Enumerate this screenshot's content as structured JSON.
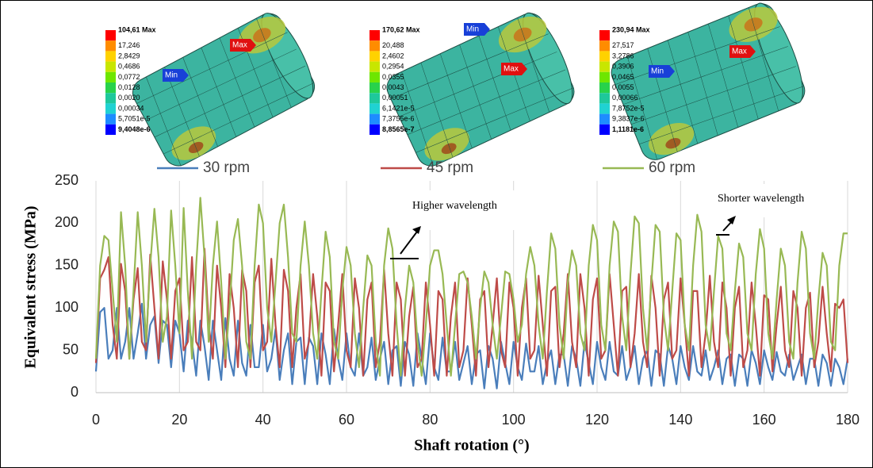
{
  "chart_data": {
    "type": "line",
    "x_label": "Shaft rotation (°)",
    "y_label": "Equivalent stress (MPa)",
    "xlim": [
      0,
      180
    ],
    "ylim": [
      0,
      250
    ],
    "xticks": [
      0,
      20,
      40,
      60,
      80,
      100,
      120,
      140,
      160,
      180
    ],
    "yticks": [
      0,
      50,
      100,
      150,
      200,
      250
    ],
    "grid": true,
    "legend": "top",
    "annotations": [
      "Higher wavelength",
      "Shorter wavelength"
    ],
    "insets": [
      {
        "labels": [
          "104,61 Max",
          "17,246",
          "2,8429",
          "0,4686",
          "0,0772",
          "0,0128",
          "0,0020",
          "0,00034",
          "5,7051e-5",
          "9,4048e-6"
        ],
        "markers": [
          "Max",
          "Min"
        ]
      },
      {
        "labels": [
          "170,62 Max",
          "20,488",
          "2,4602",
          "0,2954",
          "0,0355",
          "0,0043",
          "0,00051",
          "6,1421e-5",
          "7,3755e-6",
          "8,8565e-7"
        ],
        "markers": [
          "Min",
          "Max"
        ]
      },
      {
        "labels": [
          "230,94 Max",
          "27,517",
          "3,2786",
          "0,3906",
          "0,0465",
          "0,0055",
          "0,00066",
          "7,8752e-5",
          "9,3837e-6",
          "1,1181e-6"
        ],
        "markers": [
          "Max",
          "Min"
        ]
      }
    ],
    "x": [
      0,
      1,
      2,
      3,
      4,
      5,
      6,
      7,
      8,
      9,
      10,
      11,
      12,
      13,
      14,
      15,
      16,
      17,
      18,
      19,
      20,
      21,
      22,
      23,
      24,
      25,
      26,
      27,
      28,
      29,
      30,
      31,
      32,
      33,
      34,
      35,
      36,
      37,
      38,
      39,
      40,
      41,
      42,
      43,
      44,
      45,
      46,
      47,
      48,
      49,
      50,
      51,
      52,
      53,
      54,
      55,
      56,
      57,
      58,
      59,
      60,
      61,
      62,
      63,
      64,
      65,
      66,
      67,
      68,
      69,
      70,
      71,
      72,
      73,
      74,
      75,
      76,
      77,
      78,
      79,
      80,
      81,
      82,
      83,
      84,
      85,
      86,
      87,
      88,
      89,
      90,
      91,
      92,
      93,
      94,
      95,
      96,
      97,
      98,
      99,
      100,
      101,
      102,
      103,
      104,
      105,
      106,
      107,
      108,
      109,
      110,
      111,
      112,
      113,
      114,
      115,
      116,
      117,
      118,
      119,
      120,
      121,
      122,
      123,
      124,
      125,
      126,
      127,
      128,
      129,
      130,
      131,
      132,
      133,
      134,
      135,
      136,
      137,
      138,
      139,
      140,
      141,
      142,
      143,
      144,
      145,
      146,
      147,
      148,
      149,
      150,
      151,
      152,
      153,
      154,
      155,
      156,
      157,
      158,
      159,
      160,
      161,
      162,
      163,
      164,
      165,
      166,
      167,
      168,
      169,
      170,
      171,
      172,
      173,
      174,
      175,
      176,
      177,
      178,
      179,
      180
    ],
    "series": [
      {
        "name": "30 rpm",
        "color": "#4a7ebb",
        "values": [
          25,
          95,
          100,
          40,
          50,
          100,
          40,
          60,
          100,
          40,
          70,
          105,
          40,
          80,
          90,
          35,
          85,
          80,
          30,
          85,
          70,
          25,
          85,
          60,
          20,
          85,
          55,
          15,
          85,
          50,
          15,
          88,
          40,
          20,
          85,
          35,
          20,
          80,
          30,
          30,
          80,
          25,
          40,
          75,
          15,
          50,
          70,
          10,
          60,
          65,
          10,
          65,
          55,
          10,
          70,
          45,
          10,
          75,
          40,
          15,
          70,
          30,
          20,
          70,
          20,
          30,
          65,
          15,
          40,
          60,
          10,
          50,
          55,
          8,
          60,
          45,
          8,
          70,
          40,
          10,
          70,
          30,
          15,
          65,
          25,
          25,
          60,
          15,
          35,
          55,
          10,
          45,
          50,
          5,
          55,
          40,
          5,
          60,
          35,
          10,
          60,
          30,
          15,
          58,
          25,
          25,
          55,
          10,
          35,
          50,
          10,
          45,
          45,
          8,
          55,
          40,
          8,
          60,
          35,
          10,
          60,
          30,
          15,
          60,
          25,
          20,
          55,
          15,
          30,
          55,
          10,
          40,
          50,
          8,
          50,
          45,
          8,
          55,
          40,
          10,
          55,
          30,
          15,
          55,
          25,
          20,
          50,
          15,
          30,
          50,
          10,
          40,
          45,
          8,
          45,
          40,
          8,
          50,
          35,
          10,
          50,
          30,
          15,
          48,
          25,
          20,
          45,
          15,
          30,
          45,
          10,
          40,
          40,
          8,
          45,
          35,
          8,
          40,
          30,
          10,
          40
        ]
      },
      {
        "name": "45 rpm",
        "color": "#be4b48",
        "values": [
          35,
          135,
          145,
          160,
          80,
          40,
          152,
          120,
          40,
          110,
          147,
          60,
          50,
          163,
          100,
          40,
          155,
          110,
          40,
          120,
          135,
          50,
          60,
          160,
          60,
          50,
          170,
          80,
          40,
          150,
          100,
          30,
          140,
          100,
          30,
          145,
          120,
          30,
          130,
          150,
          50,
          60,
          158,
          80,
          30,
          145,
          120,
          30,
          100,
          140,
          40,
          60,
          140,
          90,
          20,
          130,
          120,
          25,
          80,
          140,
          50,
          30,
          135,
          100,
          20,
          110,
          130,
          30,
          60,
          145,
          70,
          20,
          130,
          110,
          20,
          90,
          125,
          30,
          40,
          130,
          80,
          20,
          120,
          110,
          20,
          90,
          130,
          30,
          50,
          135,
          80,
          20,
          110,
          120,
          30,
          80,
          135,
          50,
          30,
          130,
          100,
          20,
          100,
          135,
          40,
          50,
          138,
          80,
          20,
          120,
          125,
          30,
          70,
          140,
          60,
          30,
          140,
          100,
          20,
          110,
          135,
          40,
          50,
          140,
          80,
          20,
          120,
          125,
          30,
          70,
          140,
          60,
          30,
          138,
          100,
          20,
          110,
          130,
          40,
          50,
          135,
          80,
          20,
          120,
          120,
          30,
          70,
          138,
          60,
          30,
          130,
          100,
          20,
          100,
          125,
          30,
          50,
          130,
          80,
          20,
          115,
          110,
          25,
          80,
          125,
          50,
          30,
          120,
          100,
          20,
          100,
          118,
          30,
          60,
          125,
          70,
          25,
          105,
          100,
          110,
          35
        ]
      },
      {
        "name": "60 rpm",
        "color": "#98b954",
        "values": [
          40,
          150,
          185,
          180,
          120,
          60,
          213,
          150,
          40,
          120,
          213,
          150,
          60,
          150,
          217,
          160,
          60,
          90,
          215,
          150,
          70,
          218,
          120,
          40,
          150,
          230,
          160,
          60,
          150,
          202,
          130,
          40,
          100,
          180,
          205,
          150,
          60,
          40,
          150,
          222,
          200,
          100,
          60,
          130,
          200,
          222,
          160,
          70,
          60,
          150,
          202,
          150,
          70,
          40,
          120,
          190,
          160,
          60,
          40,
          120,
          172,
          150,
          70,
          30,
          100,
          162,
          150,
          60,
          20,
          150,
          194,
          170,
          80,
          20,
          100,
          150,
          130,
          60,
          20,
          80,
          150,
          168,
          168,
          140,
          80,
          20,
          80,
          140,
          143,
          130,
          90,
          40,
          100,
          143,
          130,
          80,
          40,
          90,
          143,
          140,
          110,
          60,
          80,
          140,
          172,
          150,
          80,
          40,
          120,
          188,
          170,
          80,
          40,
          130,
          168,
          150,
          70,
          50,
          150,
          198,
          180,
          80,
          50,
          150,
          202,
          190,
          90,
          50,
          140,
          208,
          200,
          100,
          50,
          130,
          198,
          190,
          90,
          50,
          120,
          188,
          180,
          80,
          50,
          150,
          210,
          190,
          80,
          50,
          120,
          185,
          170,
          70,
          50,
          120,
          176,
          160,
          70,
          50,
          140,
          193,
          170,
          70,
          40,
          110,
          170,
          150,
          60,
          40,
          130,
          190,
          170,
          70,
          40,
          110,
          165,
          150,
          60,
          50,
          150,
          188,
          188
        ]
      }
    ]
  }
}
